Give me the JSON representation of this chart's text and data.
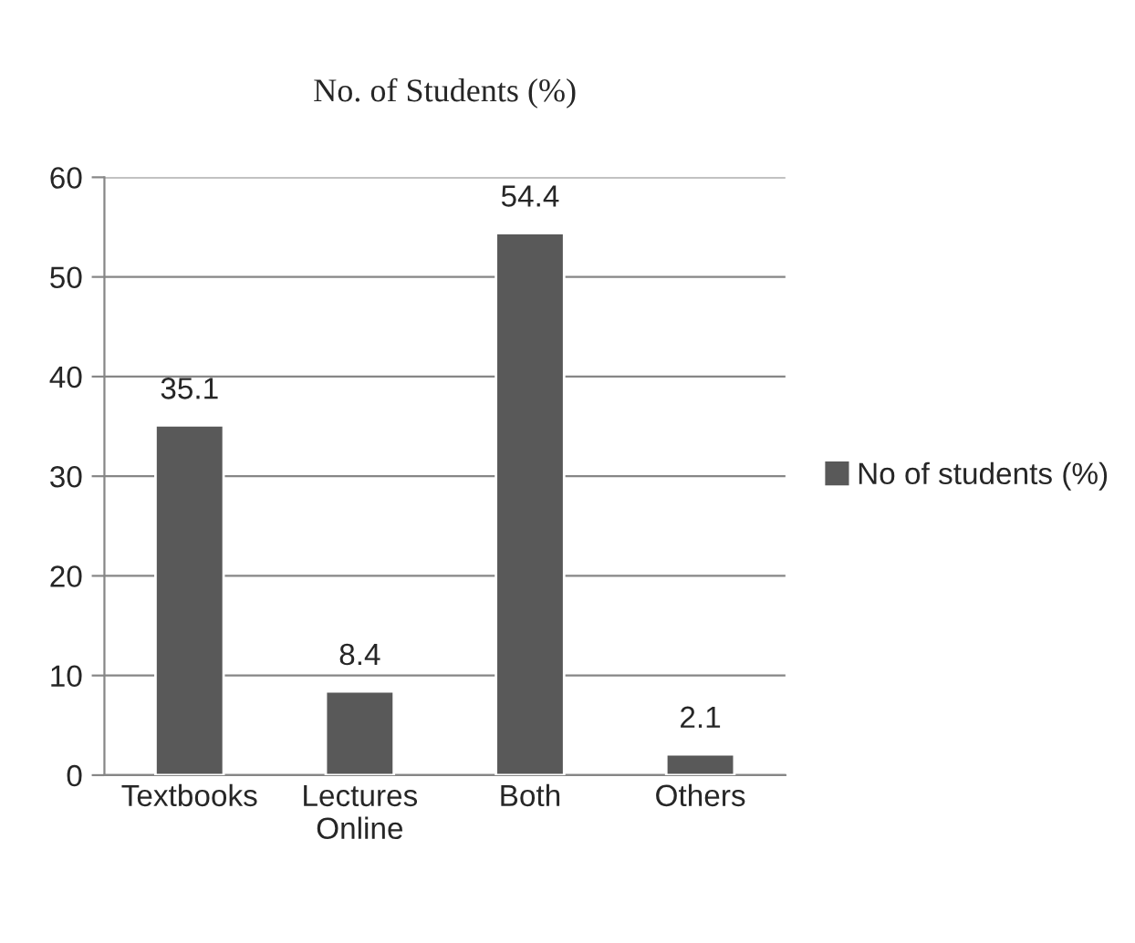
{
  "chart_data": {
    "type": "bar",
    "title": "No. of Students (%)",
    "categories": [
      "Textbooks",
      "Lectures\nOnline",
      "Both",
      "Others"
    ],
    "series": [
      {
        "name": "No of students (%)",
        "color": "#595959",
        "values": [
          35.1,
          8.4,
          54.4,
          2.1
        ]
      }
    ],
    "ylim": [
      0,
      60
    ],
    "yticks": [
      0,
      10,
      20,
      30,
      40,
      50,
      60
    ],
    "grid": "y",
    "legend": "right",
    "data_labels": true
  }
}
